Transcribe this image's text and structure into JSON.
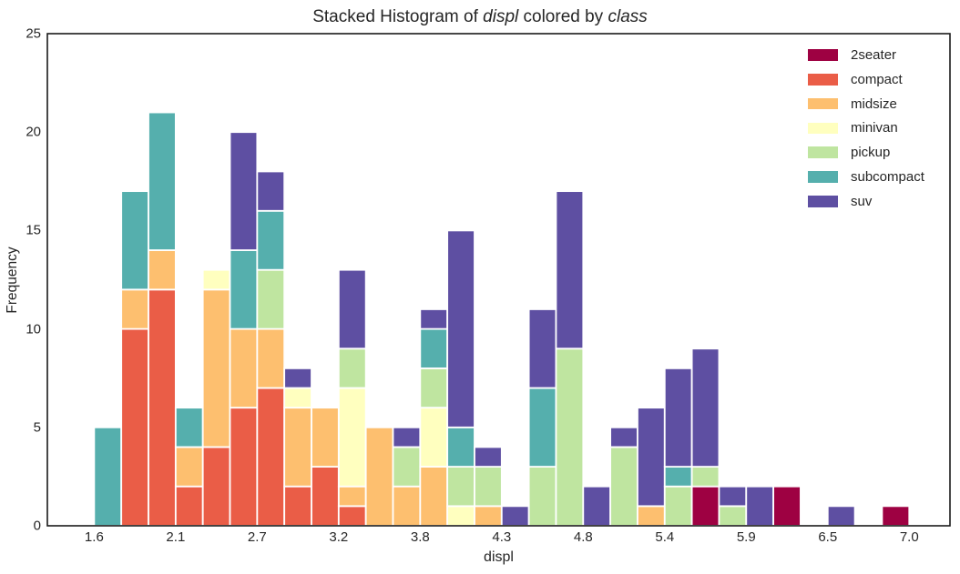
{
  "title": {
    "full_text": "Stacked Histogram of displ colored by class",
    "parts": [
      {
        "text": "Stacked Histogram of ",
        "italic": false
      },
      {
        "text": "displ",
        "italic": true
      },
      {
        "text": " colored by ",
        "italic": false
      },
      {
        "text": "class",
        "italic": true
      }
    ]
  },
  "axes": {
    "xlabel": "displ",
    "ylabel": "Frequency",
    "x_tick_labels": [
      "1.6",
      "2.1",
      "2.7",
      "3.2",
      "3.8",
      "4.3",
      "4.8",
      "5.4",
      "5.9",
      "6.5",
      "7.0"
    ],
    "x_tick_values": [
      1.6,
      2.14,
      2.68,
      3.22,
      3.76,
      4.3,
      4.84,
      5.38,
      5.92,
      6.46,
      7.0
    ],
    "y_tick_labels": [
      "0",
      "5",
      "10",
      "15",
      "20",
      "25"
    ],
    "y_tick_values": [
      0,
      5,
      10,
      15,
      20,
      25
    ]
  },
  "legend": {
    "position": "upper right",
    "entries": [
      {
        "label": "2seater",
        "color": "#9e0142"
      },
      {
        "label": "compact",
        "color": "#ea5d47"
      },
      {
        "label": "midsize",
        "color": "#fdbf6f"
      },
      {
        "label": "minivan",
        "color": "#ffffbf"
      },
      {
        "label": "pickup",
        "color": "#bfe5a0"
      },
      {
        "label": "subcompact",
        "color": "#55afad"
      },
      {
        "label": "suv",
        "color": "#5e4fa2"
      }
    ]
  },
  "chart_data": {
    "type": "bar",
    "subtype": "stacked-histogram",
    "title": "Stacked Histogram of displ colored by class",
    "xlabel": "displ",
    "ylabel": "Frequency",
    "xlim_view": [
      1.29,
      7.27
    ],
    "ylim": [
      0,
      25
    ],
    "grid": false,
    "bar_edge_color": "#ffffff",
    "bin_width": 0.18,
    "stack_order": [
      "2seater",
      "compact",
      "midsize",
      "minivan",
      "pickup",
      "subcompact",
      "suv"
    ],
    "colors": {
      "2seater": "#9e0142",
      "compact": "#ea5d47",
      "midsize": "#fdbf6f",
      "minivan": "#ffffbf",
      "pickup": "#bfe5a0",
      "subcompact": "#55afad",
      "suv": "#5e4fa2"
    },
    "bins": [
      {
        "x0": 1.6,
        "x1": 1.78,
        "counts": {
          "subcompact": 5
        }
      },
      {
        "x0": 1.78,
        "x1": 1.96,
        "counts": {
          "compact": 10,
          "midsize": 2,
          "subcompact": 5
        }
      },
      {
        "x0": 1.96,
        "x1": 2.14,
        "counts": {
          "compact": 12,
          "midsize": 2,
          "subcompact": 7
        }
      },
      {
        "x0": 2.14,
        "x1": 2.32,
        "counts": {
          "compact": 2,
          "midsize": 2,
          "subcompact": 2
        }
      },
      {
        "x0": 2.32,
        "x1": 2.5,
        "counts": {
          "compact": 4,
          "midsize": 8,
          "minivan": 1
        }
      },
      {
        "x0": 2.5,
        "x1": 2.68,
        "counts": {
          "compact": 6,
          "midsize": 4,
          "subcompact": 4,
          "suv": 6
        }
      },
      {
        "x0": 2.68,
        "x1": 2.86,
        "counts": {
          "compact": 7,
          "midsize": 3,
          "pickup": 3,
          "subcompact": 3,
          "suv": 2
        }
      },
      {
        "x0": 2.86,
        "x1": 3.04,
        "counts": {
          "compact": 2,
          "midsize": 4,
          "minivan": 1,
          "suv": 1
        }
      },
      {
        "x0": 3.04,
        "x1": 3.22,
        "counts": {
          "compact": 3,
          "midsize": 3
        }
      },
      {
        "x0": 3.22,
        "x1": 3.4,
        "counts": {
          "compact": 1,
          "midsize": 1,
          "minivan": 5,
          "pickup": 2,
          "suv": 4
        }
      },
      {
        "x0": 3.4,
        "x1": 3.58,
        "counts": {
          "midsize": 5
        }
      },
      {
        "x0": 3.58,
        "x1": 3.76,
        "counts": {
          "midsize": 2,
          "pickup": 2,
          "suv": 1
        }
      },
      {
        "x0": 3.76,
        "x1": 3.94,
        "counts": {
          "midsize": 3,
          "minivan": 3,
          "pickup": 2,
          "subcompact": 2,
          "suv": 1
        }
      },
      {
        "x0": 3.94,
        "x1": 4.12,
        "counts": {
          "minivan": 1,
          "pickup": 2,
          "subcompact": 2,
          "suv": 10
        }
      },
      {
        "x0": 4.12,
        "x1": 4.3,
        "counts": {
          "midsize": 1,
          "pickup": 2,
          "suv": 1
        }
      },
      {
        "x0": 4.3,
        "x1": 4.48,
        "counts": {
          "suv": 1
        }
      },
      {
        "x0": 4.48,
        "x1": 4.66,
        "counts": {
          "pickup": 3,
          "subcompact": 4,
          "suv": 4
        }
      },
      {
        "x0": 4.66,
        "x1": 4.84,
        "counts": {
          "pickup": 9,
          "suv": 8
        }
      },
      {
        "x0": 4.84,
        "x1": 5.02,
        "counts": {
          "suv": 2
        }
      },
      {
        "x0": 5.02,
        "x1": 5.2,
        "counts": {
          "pickup": 4,
          "suv": 1
        }
      },
      {
        "x0": 5.2,
        "x1": 5.38,
        "counts": {
          "midsize": 1,
          "suv": 5
        }
      },
      {
        "x0": 5.38,
        "x1": 5.56,
        "counts": {
          "pickup": 2,
          "subcompact": 1,
          "suv": 5
        }
      },
      {
        "x0": 5.56,
        "x1": 5.74,
        "counts": {
          "2seater": 2,
          "pickup": 1,
          "suv": 6
        }
      },
      {
        "x0": 5.74,
        "x1": 5.92,
        "counts": {
          "pickup": 1,
          "suv": 1
        }
      },
      {
        "x0": 5.92,
        "x1": 6.1,
        "counts": {
          "suv": 2
        }
      },
      {
        "x0": 6.1,
        "x1": 6.28,
        "counts": {
          "2seater": 2
        }
      },
      {
        "x0": 6.28,
        "x1": 6.46,
        "counts": {}
      },
      {
        "x0": 6.46,
        "x1": 6.64,
        "counts": {
          "suv": 1
        }
      },
      {
        "x0": 6.64,
        "x1": 6.82,
        "counts": {}
      },
      {
        "x0": 6.82,
        "x1": 7.0,
        "counts": {
          "2seater": 1
        }
      }
    ]
  }
}
